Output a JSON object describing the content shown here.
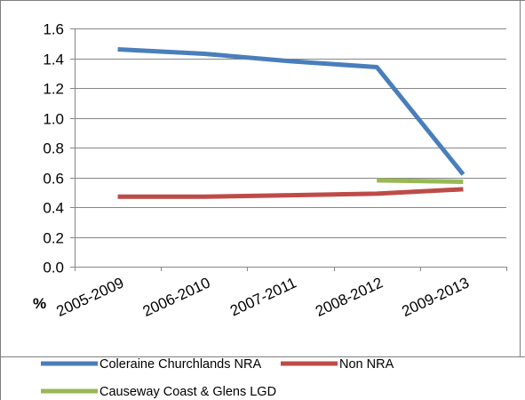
{
  "chart_data": {
    "type": "line",
    "title": "",
    "xlabel": "",
    "ylabel": "%",
    "categories": [
      "2005-2009",
      "2006-2010",
      "2007-2011",
      "2008-2012",
      "2009-2013"
    ],
    "ylim": [
      0,
      1.6
    ],
    "yticks": [
      "0.0",
      "0.2",
      "0.4",
      "0.6",
      "0.8",
      "1.0",
      "1.2",
      "1.4",
      "1.6"
    ],
    "grid": true,
    "legend_position": "bottom",
    "series": [
      {
        "name": "Coleraine Churchlands NRA",
        "values": [
          1.46,
          1.43,
          1.38,
          1.34,
          0.62
        ],
        "color": "#4a7ebb"
      },
      {
        "name": "Non NRA",
        "values": [
          0.47,
          0.47,
          0.48,
          0.49,
          0.52
        ],
        "color": "#be4b48"
      },
      {
        "name": "Causeway Coast & Glens LGD",
        "values": [
          null,
          null,
          null,
          0.58,
          0.57
        ],
        "color": "#98b954"
      }
    ]
  }
}
